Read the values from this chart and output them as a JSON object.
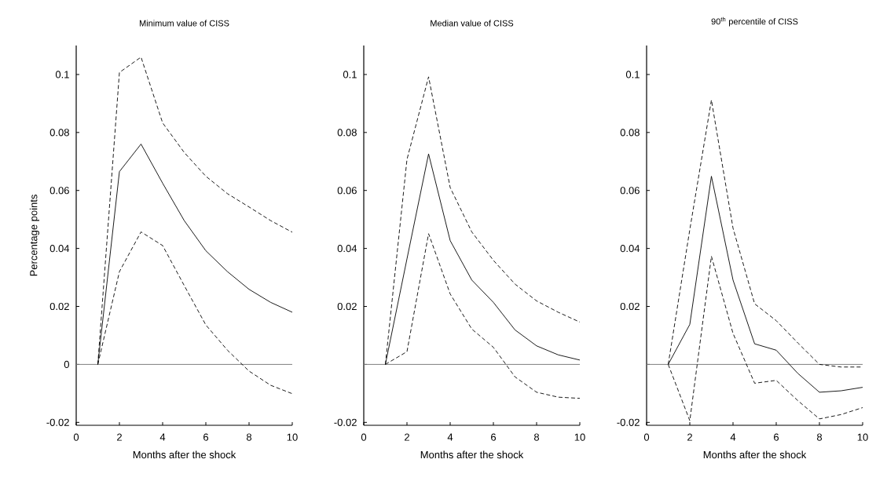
{
  "chart_data": [
    {
      "type": "line",
      "title": "Minimum value of CISS",
      "xlabel": "Months after the shock",
      "ylabel": "Percentage points",
      "x": [
        1,
        2,
        3,
        4,
        5,
        6,
        7,
        8,
        9,
        10
      ],
      "series": [
        {
          "color": "#000000",
          "line_style": "solid",
          "values": [
            0,
            0.0665,
            0.076,
            0.0625,
            0.0496,
            0.0392,
            0.032,
            0.0259,
            0.0214,
            0.018
          ]
        },
        {
          "color": "#000000",
          "line_style": "dashed",
          "values": [
            0,
            0.1007,
            0.106,
            0.0833,
            0.0731,
            0.0649,
            0.0589,
            0.0543,
            0.0496,
            0.0456
          ]
        },
        {
          "color": "#000000",
          "line_style": "dashed",
          "values": [
            0,
            0.032,
            0.0457,
            0.041,
            0.0272,
            0.0136,
            0.0049,
            -0.0023,
            -0.0072,
            -0.0101
          ]
        }
      ],
      "xlim": [
        0,
        10
      ],
      "ylim": [
        -0.021,
        0.11
      ],
      "xticks": [
        0,
        2,
        4,
        6,
        8,
        10
      ],
      "yticks": [
        -0.02,
        0,
        0.02,
        0.04,
        0.06,
        0.08,
        0.1
      ],
      "ref_lines": [
        {
          "axis": "y",
          "value": 0,
          "color": "#808080"
        }
      ]
    },
    {
      "type": "line",
      "title": "Median value of CISS",
      "xlabel": "Months after the shock",
      "x": [
        1,
        2,
        3,
        4,
        5,
        6,
        7,
        8,
        9,
        10
      ],
      "series": [
        {
          "color": "#000000",
          "line_style": "solid",
          "values": [
            0,
            0.0364,
            0.0726,
            0.0427,
            0.0291,
            0.0214,
            0.0119,
            0.0064,
            0.0033,
            0.0015
          ]
        },
        {
          "color": "#000000",
          "line_style": "dashed",
          "values": [
            0,
            0.0707,
            0.0992,
            0.061,
            0.0457,
            0.0359,
            0.0277,
            0.0219,
            0.018,
            0.0146
          ]
        },
        {
          "color": "#000000",
          "line_style": "dashed",
          "values": [
            0,
            0.0044,
            0.0451,
            0.0243,
            0.0122,
            0.0059,
            -0.0043,
            -0.0096,
            -0.0113,
            -0.0117
          ]
        }
      ],
      "xlim": [
        0,
        10
      ],
      "ylim": [
        -0.021,
        0.11
      ],
      "xticks": [
        0,
        2,
        4,
        6,
        8,
        10
      ],
      "yticks": [
        -0.02,
        {
          "value": 0,
          "label": null
        },
        0.02,
        0.04,
        0.06,
        0.08,
        0.1
      ],
      "ref_lines": [
        {
          "axis": "y",
          "value": 0,
          "color": "#808080"
        }
      ]
    },
    {
      "type": "line",
      "title": "90$^{th}$ percentile of CISS",
      "xlabel": "Months after the shock",
      "x": [
        1,
        2,
        3,
        4,
        5,
        6,
        7,
        8,
        9,
        10
      ],
      "series": [
        {
          "color": "#000000",
          "line_style": "solid",
          "values": [
            0,
            0.0138,
            0.0649,
            0.0291,
            0.0071,
            0.0049,
            -0.0031,
            -0.0096,
            -0.0091,
            -0.0079
          ]
        },
        {
          "color": "#000000",
          "line_style": "dashed",
          "values": [
            0,
            0.0465,
            0.0912,
            0.047,
            0.0209,
            0.0151,
            0.0074,
            0,
            -0.0009,
            -0.0009
          ]
        },
        {
          "color": "#000000",
          "line_style": "dashed",
          "values": [
            0,
            -0.0194,
            0.0373,
            0.0107,
            -0.0065,
            -0.0055,
            -0.0125,
            -0.0188,
            -0.0173,
            -0.0149
          ]
        }
      ],
      "xlim": [
        0,
        10
      ],
      "ylim": [
        -0.021,
        0.11
      ],
      "xticks": [
        0,
        2,
        4,
        6,
        8,
        10
      ],
      "yticks": [
        -0.02,
        {
          "value": 0,
          "label": null
        },
        0.02,
        0.04,
        0.06,
        0.08,
        0.1
      ],
      "ref_lines": [
        {
          "axis": "y",
          "value": 0,
          "color": "#808080"
        }
      ]
    }
  ]
}
